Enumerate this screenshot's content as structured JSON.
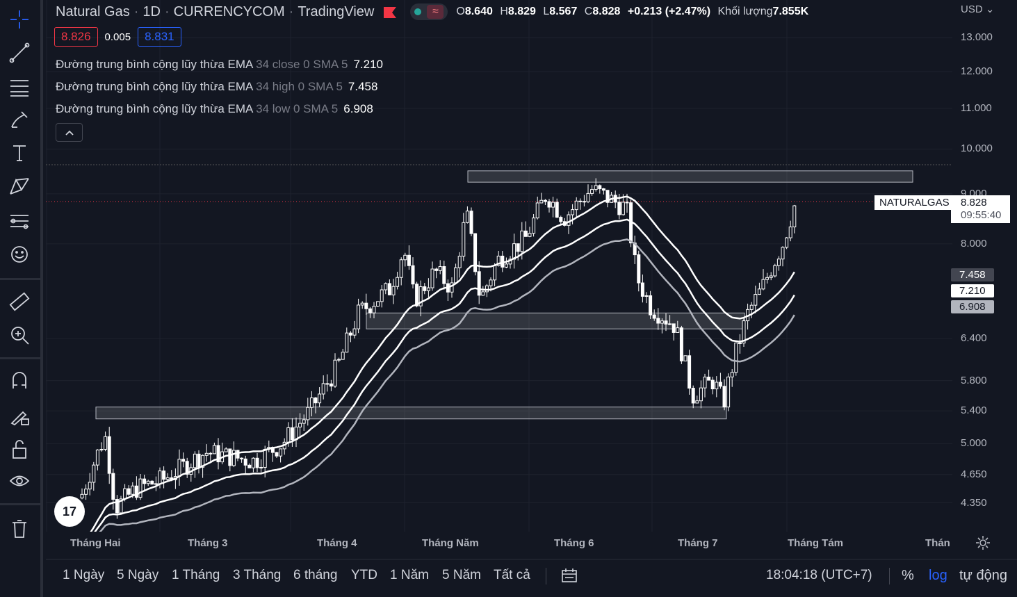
{
  "header": {
    "symbol": "Natural Gas",
    "interval": "1D",
    "exchange": "CURRENCYCOM",
    "platform": "TradingView",
    "separator": "·",
    "ohlc": {
      "o_label": "O",
      "o": "8.640",
      "h_label": "H",
      "h": "8.829",
      "l_label": "L",
      "l": "8.567",
      "c_label": "C",
      "c": "8.828",
      "change": "+0.213 (+2.47%)",
      "volume_label": "Khối lượng",
      "volume": "7.855K"
    },
    "bid": "8.826",
    "spread": "0.005",
    "ask": "8.831"
  },
  "indicators": [
    {
      "name": "Đường trung bình cộng lũy thừa EMA",
      "params": "34 close 0 SMA 5",
      "value": "7.210"
    },
    {
      "name": "Đường trung bình cộng lũy thừa EMA",
      "params": "34 high 0 SMA 5",
      "value": "7.458"
    },
    {
      "name": "Đường trung bình cộng lũy thừa EMA",
      "params": "34 low 0 SMA 5",
      "value": "6.908"
    }
  ],
  "price_axis": {
    "currency": "USD",
    "labels": [
      "13.000",
      "12.000",
      "11.000",
      "10.000",
      "9.000",
      "8.000",
      "6.400",
      "5.800",
      "5.400",
      "5.000",
      "4.650",
      "4.350"
    ],
    "tags": {
      "ema_high": "7.458",
      "ema_close": "7.210",
      "ema_low": "6.908"
    },
    "symbol_tag": "NATURALGAS",
    "last_price": "8.828",
    "countdown": "09:55:40"
  },
  "time_axis": [
    "Tháng Hai",
    "Tháng 3",
    "Tháng 4",
    "Tháng Năm",
    "Tháng 6",
    "Tháng 7",
    "Tháng Tám",
    "Thán"
  ],
  "bottom_bar": {
    "ranges": [
      "1 Ngày",
      "5 Ngày",
      "1 Tháng",
      "3 Tháng",
      "6 tháng",
      "YTD",
      "1 Năm",
      "5 Năm",
      "Tất cả"
    ],
    "clock": "18:04:18 (UTC+7)",
    "percent": "%",
    "log": "log",
    "auto": "tự động"
  },
  "logo_text": "17",
  "colors": {
    "background": "#131722",
    "candle": "#ffffff",
    "ema_high": "#ffffff",
    "ema_close": "#ffffff",
    "ema_low": "#b2b5be",
    "accent": "#2962ff",
    "bid": "#f23645"
  },
  "chart_data": {
    "type": "candlestick",
    "scale": "log",
    "price_range": [
      4.2,
      13.2
    ],
    "zones": [
      {
        "low": 9.25,
        "high": 9.5
      },
      {
        "low": 6.55,
        "high": 6.8
      },
      {
        "low": 5.3,
        "high": 5.45
      }
    ]
  }
}
